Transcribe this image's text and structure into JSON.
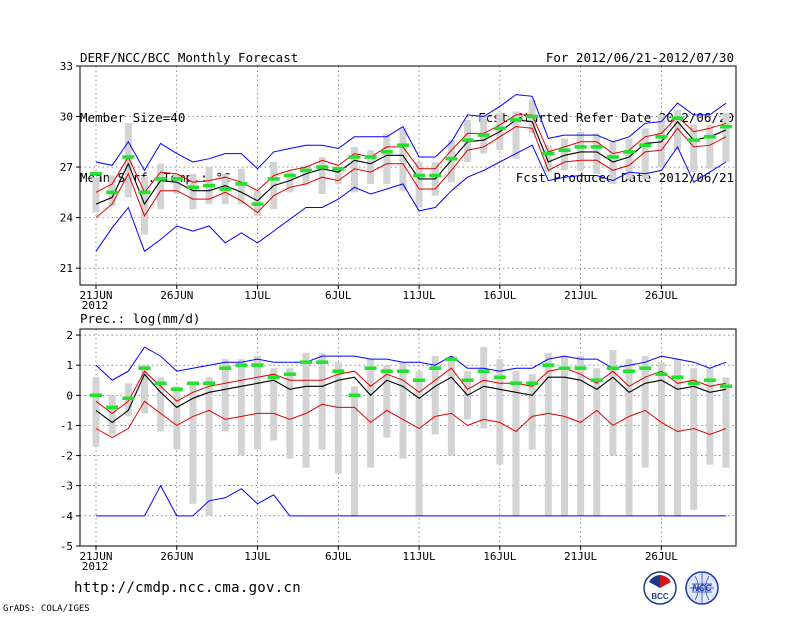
{
  "header": {
    "title": "DERF/NCC/BCC Monthly Forecast",
    "member_size": "Member Size=40",
    "variable_label": "Mean Surf. Temp.: °C",
    "forecast_period": "For 2012/06/21-2012/07/30",
    "started_date": "Fcst Started Refer Date 2012/06/20",
    "produced_date": "Fcst Produced Date 2012/06/21"
  },
  "footer": {
    "url": "http://cmdp.ncc.cma.gov.cn",
    "credit": "GrADS: COLA/IGES",
    "logo_bcc_text": "BCC",
    "logo_ncc_text": "NCC"
  },
  "colors": {
    "box": "#d3d3d3",
    "mean": "#000000",
    "stdband": "#e00000",
    "extreme": "#0000ff",
    "clim": "#22e22e"
  },
  "chart_data": [
    {
      "type": "line",
      "title": "Mean Surf. Temp.: °C",
      "x_start": "2012-06-21",
      "x_days": 40,
      "xticks": [
        {
          "day": 0,
          "label": "21JUN",
          "sub": "2012"
        },
        {
          "day": 5,
          "label": "26JUN",
          "sub": ""
        },
        {
          "day": 10,
          "label": "1JUL",
          "sub": ""
        },
        {
          "day": 15,
          "label": "6JUL",
          "sub": ""
        },
        {
          "day": 20,
          "label": "11JUL",
          "sub": ""
        },
        {
          "day": 25,
          "label": "16JUL",
          "sub": ""
        },
        {
          "day": 30,
          "label": "21JUL",
          "sub": ""
        },
        {
          "day": 35,
          "label": "26JUL",
          "sub": ""
        }
      ],
      "ylim": [
        20,
        33
      ],
      "yticks": [
        21,
        24,
        27,
        30,
        33
      ],
      "grid": true,
      "series": [
        {
          "name": "Maximum",
          "role": "max",
          "values": [
            27.3,
            27.1,
            28.5,
            26.8,
            28.4,
            27.8,
            27.3,
            27.5,
            27.8,
            27.8,
            26.9,
            27.9,
            28.1,
            28.3,
            28.3,
            28.1,
            28.8,
            28.8,
            28.8,
            29.4,
            27.6,
            27.6,
            28.5,
            30.1,
            30.0,
            30.6,
            31.3,
            31.2,
            28.7,
            28.9,
            28.9,
            28.9,
            28.5,
            28.8,
            29.6,
            29.7,
            30.8,
            30.1,
            30.1,
            30.8
          ]
        },
        {
          "name": "Mean + 1 SD",
          "role": "plus_sd",
          "values": [
            25.5,
            26.0,
            27.6,
            25.5,
            26.7,
            26.6,
            26.1,
            26.2,
            26.4,
            26.1,
            25.6,
            26.5,
            26.8,
            27.0,
            27.4,
            27.1,
            27.8,
            27.6,
            28.2,
            28.2,
            26.9,
            26.9,
            28.0,
            29.0,
            29.0,
            29.5,
            30.1,
            30.1,
            27.9,
            28.2,
            28.5,
            28.5,
            27.8,
            28.0,
            28.8,
            29.0,
            30.0,
            29.1,
            29.3,
            29.6
          ]
        },
        {
          "name": "Ensemble mean",
          "role": "mean",
          "values": [
            24.8,
            25.2,
            27.2,
            24.8,
            26.2,
            26.1,
            25.6,
            25.6,
            25.9,
            25.5,
            25.0,
            25.9,
            26.2,
            26.6,
            26.9,
            26.7,
            27.4,
            27.2,
            27.7,
            27.7,
            26.3,
            26.3,
            27.4,
            28.5,
            28.6,
            29.1,
            29.8,
            29.7,
            27.3,
            27.7,
            27.9,
            27.9,
            27.3,
            27.6,
            28.4,
            28.5,
            29.7,
            28.6,
            28.8,
            29.2
          ]
        },
        {
          "name": "Mean - 1 SD",
          "role": "minus_sd",
          "values": [
            24.0,
            24.8,
            26.6,
            24.1,
            25.6,
            25.6,
            25.1,
            25.1,
            25.5,
            25.0,
            24.3,
            25.3,
            25.8,
            26.0,
            26.4,
            26.2,
            26.9,
            26.7,
            27.2,
            27.2,
            25.7,
            25.7,
            26.8,
            28.0,
            28.2,
            28.8,
            29.4,
            29.3,
            26.8,
            27.3,
            27.4,
            27.4,
            26.8,
            27.1,
            27.9,
            28.0,
            29.3,
            28.2,
            28.3,
            28.8
          ]
        },
        {
          "name": "Minimum",
          "role": "min",
          "values": [
            22.0,
            23.4,
            24.6,
            22.0,
            22.7,
            23.5,
            23.2,
            23.5,
            22.5,
            23.1,
            22.5,
            23.2,
            23.9,
            24.6,
            24.6,
            25.1,
            25.8,
            25.4,
            25.7,
            26.0,
            24.4,
            24.6,
            25.6,
            26.4,
            26.8,
            27.3,
            27.8,
            28.3,
            26.2,
            26.4,
            26.5,
            26.5,
            26.2,
            26.7,
            26.6,
            26.8,
            28.2,
            26.1,
            26.7,
            27.3
          ]
        },
        {
          "name": "Climatology",
          "role": "clim",
          "values": [
            26.6,
            25.5,
            27.6,
            25.5,
            26.3,
            26.3,
            25.8,
            25.9,
            25.7,
            26.0,
            24.8,
            26.3,
            26.5,
            26.8,
            27.0,
            26.9,
            27.6,
            27.6,
            27.9,
            28.3,
            26.5,
            26.5,
            27.5,
            28.6,
            28.9,
            29.3,
            29.8,
            30.0,
            27.8,
            28.0,
            28.2,
            28.2,
            27.6,
            27.9,
            28.3,
            28.8,
            29.9,
            28.6,
            28.8,
            29.4
          ]
        },
        {
          "name": "Box high",
          "role": "box_high",
          "values": [
            26.4,
            26.5,
            29.6,
            26.4,
            27.2,
            26.6,
            26.6,
            27.0,
            26.6,
            26.9,
            25.6,
            27.3,
            26.7,
            27.1,
            27.6,
            27.0,
            28.2,
            28.0,
            29.0,
            29.3,
            27.3,
            27.3,
            28.6,
            29.8,
            30.1,
            30.2,
            30.3,
            31.0,
            28.3,
            28.7,
            29.1,
            29.0,
            28.5,
            28.7,
            29.3,
            30.1,
            30.4,
            29.5,
            29.5,
            30.2
          ]
        },
        {
          "name": "Box low",
          "role": "box_low",
          "values": [
            24.3,
            24.7,
            25.2,
            23.0,
            24.5,
            25.4,
            24.5,
            24.8,
            24.8,
            24.8,
            24.1,
            24.5,
            25.5,
            25.9,
            25.4,
            26.0,
            25.5,
            26.0,
            26.0,
            25.6,
            24.6,
            25.3,
            26.1,
            27.3,
            27.8,
            28.0,
            27.5,
            29.0,
            26.7,
            26.8,
            26.8,
            26.6,
            26.0,
            26.3,
            26.3,
            27.0,
            28.0,
            26.7,
            26.9,
            27.3
          ]
        }
      ]
    },
    {
      "type": "line",
      "title": "Prec.: log(mm/d)",
      "x_start": "2012-06-21",
      "x_days": 40,
      "xticks": [
        {
          "day": 0,
          "label": "21JUN",
          "sub": "2012"
        },
        {
          "day": 5,
          "label": "26JUN",
          "sub": ""
        },
        {
          "day": 10,
          "label": "1JUL",
          "sub": ""
        },
        {
          "day": 15,
          "label": "6JUL",
          "sub": ""
        },
        {
          "day": 20,
          "label": "11JUL",
          "sub": ""
        },
        {
          "day": 25,
          "label": "16JUL",
          "sub": ""
        },
        {
          "day": 30,
          "label": "21JUL",
          "sub": ""
        },
        {
          "day": 35,
          "label": "26JUL",
          "sub": ""
        }
      ],
      "ylim": [
        -5,
        2.2
      ],
      "yticks": [
        -5,
        -4,
        -3,
        -2,
        -1,
        0,
        1,
        2
      ],
      "grid": true,
      "series": [
        {
          "name": "Maximum",
          "role": "max",
          "values": [
            1.0,
            0.5,
            0.8,
            1.6,
            1.3,
            0.8,
            0.9,
            1.0,
            1.1,
            1.1,
            1.2,
            1.1,
            1.1,
            1.1,
            1.3,
            1.3,
            1.3,
            1.2,
            1.2,
            1.1,
            1.1,
            1.0,
            1.3,
            0.9,
            0.9,
            0.8,
            0.9,
            0.9,
            1.2,
            1.3,
            1.2,
            1.2,
            0.9,
            1.0,
            1.1,
            1.3,
            1.2,
            1.1,
            0.9,
            1.1
          ]
        },
        {
          "name": "Mean + 1 SD",
          "role": "plus_sd",
          "values": [
            -0.2,
            -0.6,
            -0.2,
            0.8,
            0.3,
            -0.2,
            0.1,
            0.3,
            0.4,
            0.5,
            0.6,
            0.7,
            0.5,
            0.5,
            0.5,
            0.7,
            0.8,
            0.3,
            0.7,
            0.5,
            0.1,
            0.5,
            0.9,
            0.2,
            0.5,
            0.4,
            0.4,
            0.3,
            0.8,
            0.9,
            0.7,
            0.4,
            0.8,
            0.3,
            0.6,
            0.8,
            0.4,
            0.5,
            0.3,
            0.4
          ]
        },
        {
          "name": "Ensemble mean",
          "role": "mean",
          "values": [
            -0.5,
            -0.9,
            -0.5,
            0.7,
            0.1,
            -0.4,
            -0.1,
            0.1,
            0.2,
            0.3,
            0.4,
            0.5,
            0.2,
            0.3,
            0.3,
            0.5,
            0.6,
            0.0,
            0.5,
            0.3,
            -0.1,
            0.3,
            0.6,
            0.0,
            0.3,
            0.2,
            0.1,
            0.0,
            0.6,
            0.6,
            0.5,
            0.2,
            0.6,
            0.1,
            0.4,
            0.5,
            0.2,
            0.3,
            0.1,
            0.2
          ]
        },
        {
          "name": "Mean - 1 SD",
          "role": "minus_sd",
          "values": [
            -1.1,
            -1.4,
            -1.1,
            -0.2,
            -0.6,
            -1.0,
            -0.7,
            -0.5,
            -0.8,
            -0.7,
            -0.6,
            -0.6,
            -0.8,
            -0.6,
            -0.3,
            -0.4,
            -0.4,
            -0.9,
            -0.5,
            -0.8,
            -1.1,
            -0.7,
            -0.6,
            -1.0,
            -0.8,
            -0.9,
            -1.2,
            -0.7,
            -0.6,
            -0.7,
            -0.9,
            -0.5,
            -1.0,
            -0.7,
            -0.5,
            -0.9,
            -1.2,
            -1.1,
            -1.3,
            -1.1
          ]
        },
        {
          "name": "Minimum",
          "role": "min",
          "values": [
            -4.0,
            -4.0,
            -4.0,
            -4.0,
            -3.0,
            -4.0,
            -4.0,
            -3.5,
            -3.4,
            -3.1,
            -3.6,
            -3.3,
            -4.0,
            -4.0,
            -4.0,
            -4.0,
            -4.0,
            -4.0,
            -4.0,
            -4.0,
            -4.0,
            -4.0,
            -4.0,
            -4.0,
            -4.0,
            -4.0,
            -4.0,
            -4.0,
            -4.0,
            -4.0,
            -4.0,
            -4.0,
            -4.0,
            -4.0,
            -4.0,
            -4.0,
            -4.0,
            -4.0,
            -4.0,
            -4.0
          ]
        },
        {
          "name": "Climatology",
          "role": "clim",
          "values": [
            0.0,
            -0.4,
            -0.1,
            0.9,
            0.4,
            0.2,
            0.4,
            0.4,
            0.9,
            1.0,
            1.0,
            0.6,
            0.7,
            1.1,
            1.1,
            0.8,
            0.0,
            0.9,
            0.8,
            0.8,
            0.5,
            0.9,
            1.2,
            0.5,
            0.8,
            0.6,
            0.4,
            0.4,
            1.0,
            0.9,
            0.9,
            0.5,
            0.9,
            0.8,
            0.9,
            0.7,
            0.6,
            0.4,
            0.5,
            0.3
          ]
        },
        {
          "name": "Box high",
          "role": "box_high",
          "values": [
            0.6,
            0.0,
            0.4,
            1.0,
            0.6,
            0.3,
            0.4,
            0.6,
            1.2,
            1.2,
            1.3,
            0.9,
            0.9,
            1.4,
            1.4,
            1.1,
            0.3,
            1.2,
            1.0,
            1.1,
            0.8,
            1.3,
            1.3,
            0.8,
            1.6,
            1.2,
            0.8,
            0.7,
            1.4,
            1.3,
            1.3,
            0.9,
            1.5,
            1.2,
            1.3,
            1.1,
            1.2,
            0.9,
            0.9,
            0.6
          ]
        },
        {
          "name": "Box low",
          "role": "box_low",
          "values": [
            -1.7,
            -1.3,
            -0.7,
            -0.6,
            -1.2,
            -1.8,
            -3.6,
            -4.0,
            -1.2,
            -2.0,
            -1.8,
            -1.5,
            -2.1,
            -2.4,
            -1.8,
            -2.6,
            -4.0,
            -2.4,
            -1.4,
            -2.1,
            -4.0,
            -1.3,
            -2.0,
            -0.8,
            -1.1,
            -2.3,
            -4.0,
            -1.8,
            -4.0,
            -4.0,
            -4.0,
            -4.0,
            -2.0,
            -4.0,
            -2.4,
            -4.0,
            -4.0,
            -3.8,
            -2.3,
            -2.4
          ]
        }
      ]
    }
  ]
}
